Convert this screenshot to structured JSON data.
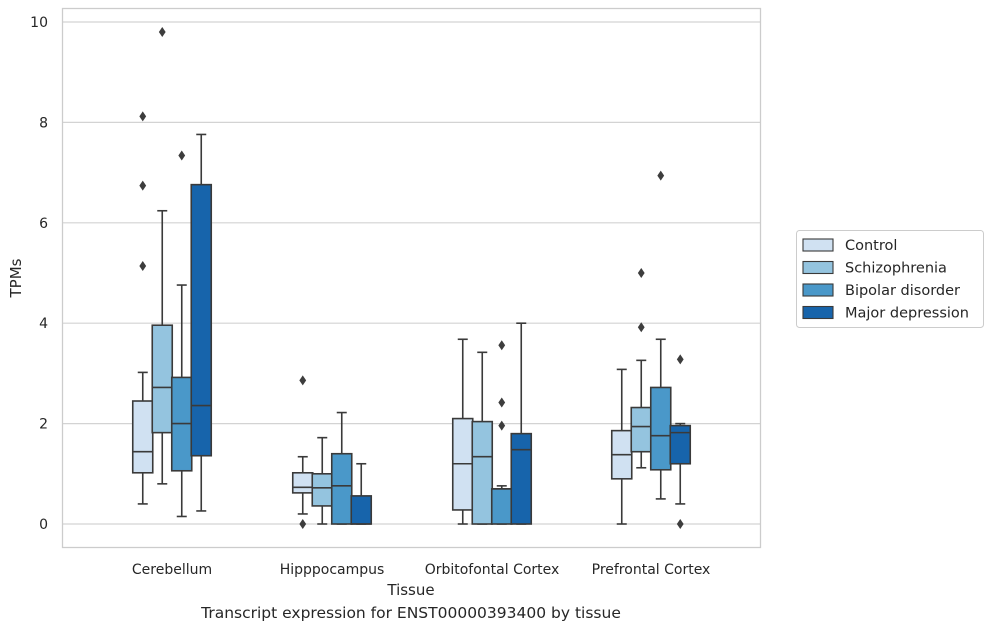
{
  "caption": "Transcript expression for ENST00000393400 by tissue",
  "chart_data": {
    "type": "boxplot",
    "xlabel": "Tissue",
    "ylabel": "TPMs",
    "ylim": [
      -0.45,
      10.3
    ],
    "yticks": [
      0,
      2,
      4,
      6,
      8,
      10
    ],
    "grid": true,
    "legend_position": "right",
    "categories": [
      "Cerebellum",
      "Hipppocampus",
      "Orbitofontal Cortex",
      "Prefrontal Cortex"
    ],
    "series": [
      {
        "name": "Control",
        "color": "#d0e1f2",
        "boxes": [
          {
            "whisker_low": 0.4,
            "q1": 1.02,
            "median": 1.44,
            "q3": 2.45,
            "whisker_high": 3.02,
            "outliers": [
              5.14,
              6.74,
              8.12
            ]
          },
          {
            "whisker_low": 0.2,
            "q1": 0.62,
            "median": 0.73,
            "q3": 1.02,
            "whisker_high": 1.34,
            "outliers": [
              0.0,
              2.86
            ]
          },
          {
            "whisker_low": 0.0,
            "q1": 0.28,
            "median": 1.2,
            "q3": 2.1,
            "whisker_high": 3.68,
            "outliers": []
          },
          {
            "whisker_low": 0.0,
            "q1": 0.9,
            "median": 1.38,
            "q3": 1.86,
            "whisker_high": 3.08,
            "outliers": []
          }
        ]
      },
      {
        "name": "Schizophrenia",
        "color": "#94c4df",
        "boxes": [
          {
            "whisker_low": 0.8,
            "q1": 1.82,
            "median": 2.72,
            "q3": 3.96,
            "whisker_high": 6.24,
            "outliers": [
              9.8
            ]
          },
          {
            "whisker_low": 0.0,
            "q1": 0.36,
            "median": 0.72,
            "q3": 1.0,
            "whisker_high": 1.72,
            "outliers": []
          },
          {
            "whisker_low": 0.0,
            "q1": 0.0,
            "median": 1.34,
            "q3": 2.04,
            "whisker_high": 3.42,
            "outliers": []
          },
          {
            "whisker_low": 1.12,
            "q1": 1.44,
            "median": 1.94,
            "q3": 2.32,
            "whisker_high": 3.26,
            "outliers": [
              3.92,
              5.0
            ]
          }
        ]
      },
      {
        "name": "Bipolar disorder",
        "color": "#4a98c9",
        "boxes": [
          {
            "whisker_low": 0.15,
            "q1": 1.06,
            "median": 2.0,
            "q3": 2.92,
            "whisker_high": 4.76,
            "outliers": [
              7.34
            ]
          },
          {
            "whisker_low": 0.0,
            "q1": 0.0,
            "median": 0.76,
            "q3": 1.4,
            "whisker_high": 2.22,
            "outliers": []
          },
          {
            "whisker_low": 0.0,
            "q1": 0.0,
            "median": 0.7,
            "q3": 0.7,
            "whisker_high": 0.76,
            "outliers": [
              1.96,
              2.42,
              3.56
            ]
          },
          {
            "whisker_low": 0.5,
            "q1": 1.08,
            "median": 1.76,
            "q3": 2.72,
            "whisker_high": 3.68,
            "outliers": [
              6.94
            ]
          }
        ]
      },
      {
        "name": "Major depression",
        "color": "#1764ab",
        "boxes": [
          {
            "whisker_low": 0.26,
            "q1": 1.36,
            "median": 2.36,
            "q3": 6.76,
            "whisker_high": 7.76,
            "outliers": []
          },
          {
            "whisker_low": 0.0,
            "q1": 0.0,
            "median": 0.0,
            "q3": 0.56,
            "whisker_high": 1.2,
            "outliers": []
          },
          {
            "whisker_low": 0.0,
            "q1": 0.0,
            "median": 1.48,
            "q3": 1.8,
            "whisker_high": 4.0,
            "outliers": []
          },
          {
            "whisker_low": 0.4,
            "q1": 1.2,
            "median": 1.82,
            "q3": 1.96,
            "whisker_high": 2.0,
            "outliers": [
              0.0,
              3.28
            ]
          }
        ]
      }
    ]
  }
}
